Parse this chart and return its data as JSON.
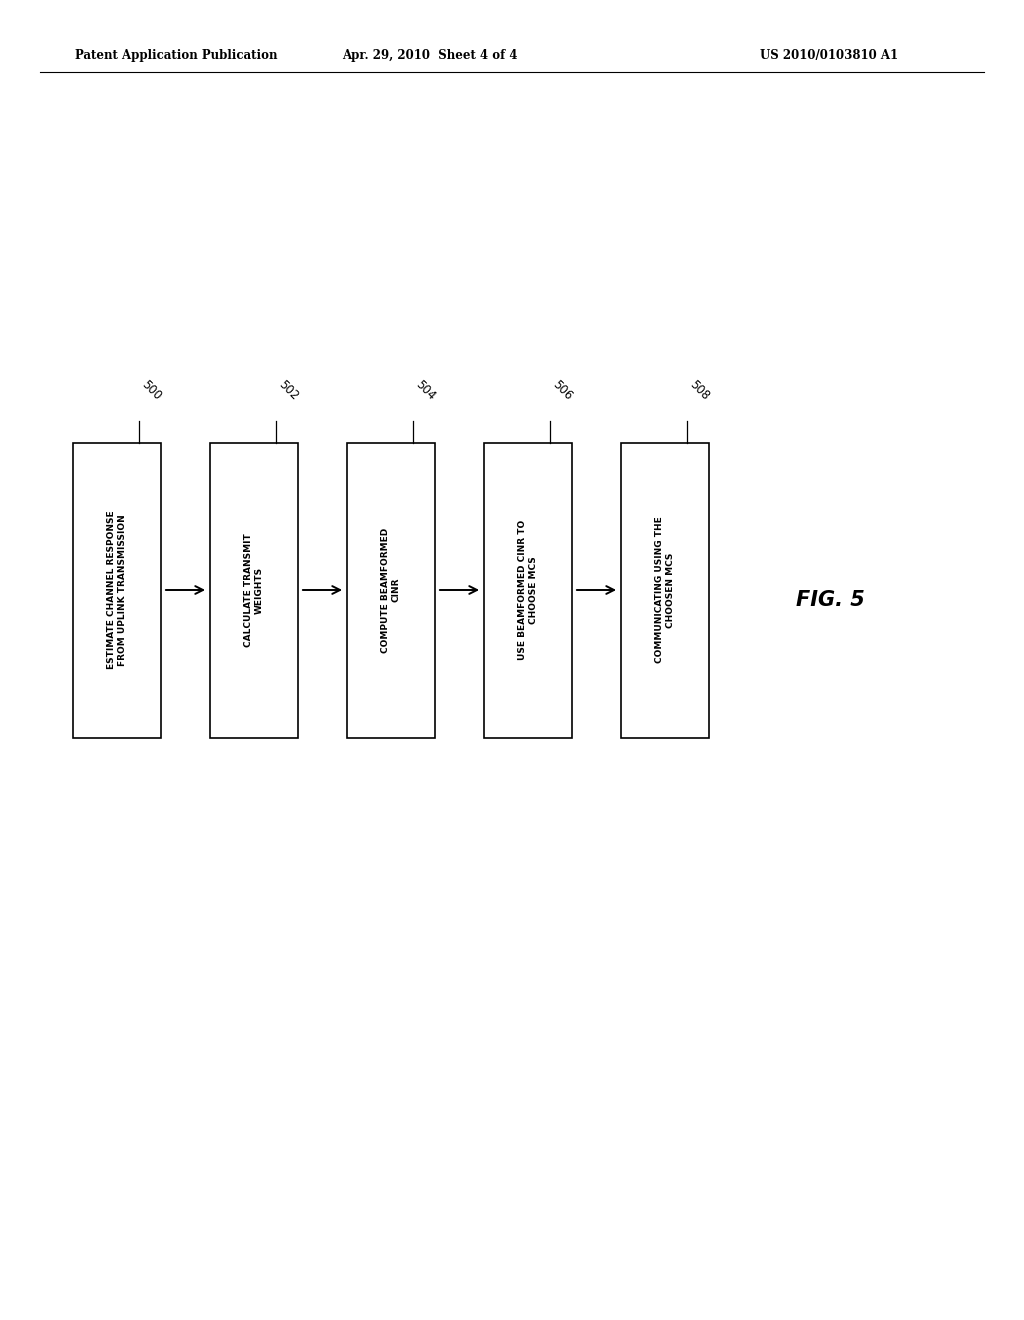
{
  "header_left": "Patent Application Publication",
  "header_mid": "Apr. 29, 2010  Sheet 4 of 4",
  "header_right": "US 2010/0103810 A1",
  "fig_label": "FIG. 5",
  "boxes": [
    {
      "label": "500",
      "text": "ESTIMATE CHANNEL RESPONSE\nFROM UPLINK TRANSMISSION"
    },
    {
      "label": "502",
      "text": "CALCULATE TRANSMIT\nWEIGHTS"
    },
    {
      "label": "504",
      "text": "COMPUTE BEAMFORMED\nCINR"
    },
    {
      "label": "506",
      "text": "USE BEAMFORMED CINR TO\nCHOOSE MCS"
    },
    {
      "label": "508",
      "text": "COMMUNICATING USING THE\nCHOOSEN MCS"
    }
  ],
  "box_color": "white",
  "box_edgecolor": "black",
  "arrow_color": "black",
  "background_color": "white",
  "header_fontsize": 8.5,
  "label_fontsize": 8.5,
  "text_fontsize": 6.5,
  "fig_label_fontsize": 15
}
